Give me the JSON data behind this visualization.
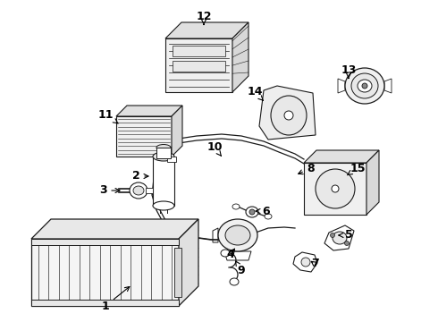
{
  "background_color": "#ffffff",
  "line_color": "#1a1a1a",
  "fig_width": 4.9,
  "fig_height": 3.6,
  "dpi": 100,
  "label_configs": {
    "1": {
      "lxy": [
        118,
        342
      ],
      "txy": [
        148,
        318
      ]
    },
    "2": {
      "lxy": [
        152,
        197
      ],
      "txy": [
        170,
        197
      ]
    },
    "3": {
      "lxy": [
        115,
        213
      ],
      "txy": [
        138,
        213
      ]
    },
    "4": {
      "lxy": [
        258,
        284
      ],
      "txy": [
        265,
        275
      ]
    },
    "5": {
      "lxy": [
        390,
        263
      ],
      "txy": [
        375,
        263
      ]
    },
    "6": {
      "lxy": [
        298,
        236
      ],
      "txy": [
        282,
        236
      ]
    },
    "7": {
      "lxy": [
        352,
        295
      ],
      "txy": [
        345,
        290
      ]
    },
    "8": {
      "lxy": [
        348,
        188
      ],
      "txy": [
        330,
        196
      ]
    },
    "9": {
      "lxy": [
        270,
        302
      ],
      "txy": [
        263,
        291
      ]
    },
    "10": {
      "lxy": [
        240,
        165
      ],
      "txy": [
        248,
        175
      ]
    },
    "11": {
      "lxy": [
        118,
        128
      ],
      "txy": [
        135,
        140
      ]
    },
    "12": {
      "lxy": [
        228,
        18
      ],
      "txy": [
        228,
        28
      ]
    },
    "13": {
      "lxy": [
        390,
        78
      ],
      "txy": [
        390,
        88
      ]
    },
    "14": {
      "lxy": [
        285,
        103
      ],
      "txy": [
        295,
        113
      ]
    },
    "15": {
      "lxy": [
        400,
        188
      ],
      "txy": [
        388,
        196
      ]
    }
  }
}
